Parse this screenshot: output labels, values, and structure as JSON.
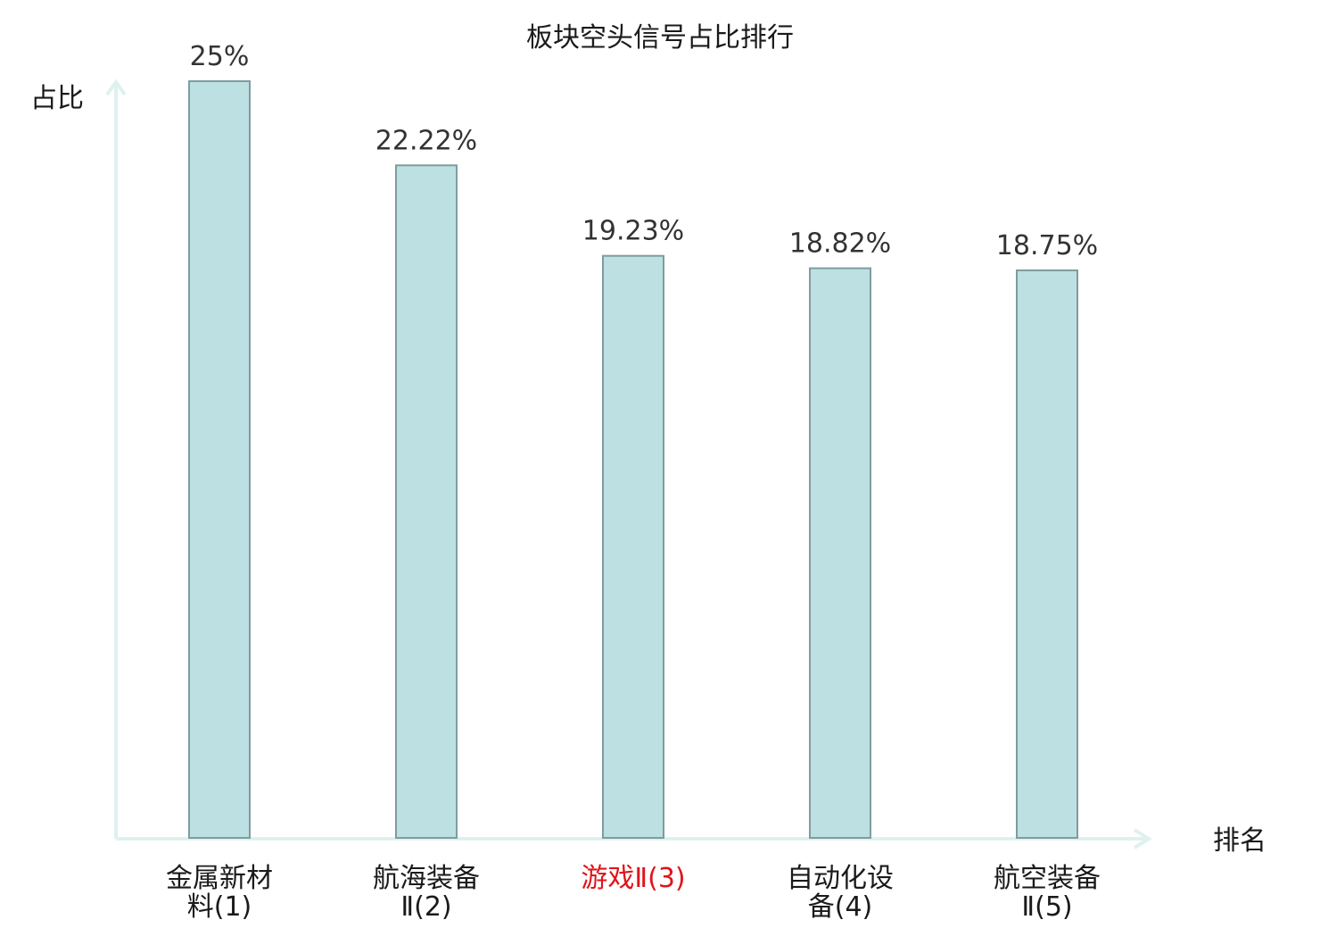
{
  "chart_data": {
    "type": "bar",
    "title": "板块空头信号占比排行",
    "ylabel": "占比",
    "xlabel": "排名",
    "categories": [
      [
        "金属新材",
        "料(1)"
      ],
      [
        "航海装备",
        "Ⅱ(2)"
      ],
      [
        "游戏Ⅱ(3)"
      ],
      [
        "自动化设",
        "备(4)"
      ],
      [
        "航空装备",
        "Ⅱ(5)"
      ]
    ],
    "values": [
      25,
      22.22,
      19.23,
      18.82,
      18.75
    ],
    "value_labels": [
      "25%",
      "22.22%",
      "19.23%",
      "18.82%",
      "18.75%"
    ],
    "highlight_index": 2,
    "ylim": [
      0,
      25
    ],
    "grid": false,
    "colors": {
      "bar_fill": "#bde0e2",
      "bar_stroke": "#7f9c9e",
      "axis": "#dff1ef",
      "highlight_text": "#e0141a",
      "text": "#1a1a1a"
    }
  }
}
